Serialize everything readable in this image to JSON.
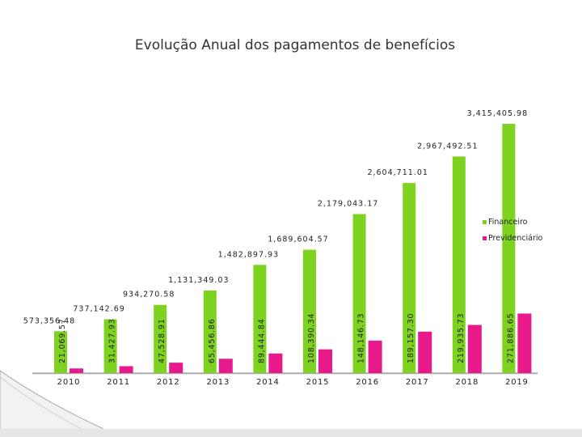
{
  "title": "Evolução Anual dos pagamentos de benefícios",
  "chart_data": {
    "type": "bar",
    "title": "Evolução Anual dos pagamentos de benefícios",
    "categories": [
      "2010",
      "2011",
      "2012",
      "2013",
      "2014",
      "2015",
      "2016",
      "2017",
      "2018",
      "2019"
    ],
    "series": [
      {
        "name": "Financeiro",
        "color": "#7ed321",
        "values": [
          573356.48,
          737142.69,
          934270.58,
          1131349.03,
          1482897.93,
          1689604.57,
          2179043.17,
          2604711.01,
          2967492.51,
          3415405.98
        ],
        "labels": [
          "573,356.48",
          "737,142.69",
          "934,270.58",
          "1,131,349.03",
          "1,482,897.93",
          "1,689,604.57",
          "2,179,043.17",
          "2,604,711.01",
          "2,967,492.51",
          "3,415,405.98"
        ]
      },
      {
        "name": "Previdenciário",
        "color": "#e8198b",
        "values": [
          21069.57,
          31427.93,
          47528.91,
          65456.86,
          89444.84,
          108390.34,
          148146.73,
          189157.3,
          219935.73,
          271886.65
        ],
        "labels": [
          "21,069.57",
          "31,427.93",
          "47,528.91",
          "65,456.86",
          "89,444.84",
          "108,390.34",
          "148,146.73",
          "189,157.30",
          "219,935.73",
          "271,886.65"
        ]
      }
    ],
    "xlabel": "",
    "ylabel": "",
    "ylim": [
      0,
      3500000
    ],
    "grid": false,
    "legend_position": "right"
  }
}
